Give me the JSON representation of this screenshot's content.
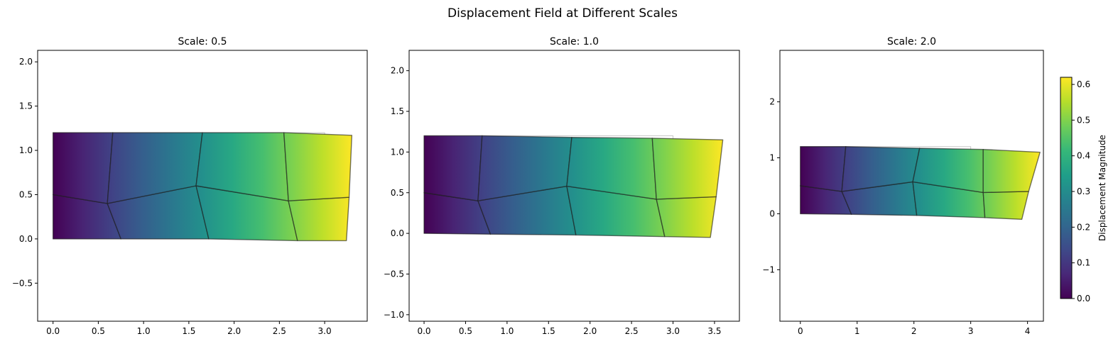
{
  "figure": {
    "title": "Displacement Field at Different Scales"
  },
  "chart_data": [
    {
      "type": "mesh",
      "title": "Scale: 0.5",
      "scale": 0.5,
      "xlim": [
        -0.17,
        3.47
      ],
      "ylim": [
        -0.93,
        2.13
      ],
      "xticks": [
        "0.0",
        "0.5",
        "1.0",
        "1.5",
        "2.0",
        "2.5",
        "3.0"
      ],
      "yticks": [
        "−0.5",
        "0.0",
        "0.5",
        "1.0",
        "1.5",
        "2.0"
      ],
      "xtick_values": [
        0,
        0.5,
        1,
        1.5,
        2,
        2.5,
        3
      ],
      "ytick_values": [
        -0.5,
        0,
        0.5,
        1,
        1.5,
        2
      ],
      "undeformed_outline": [
        [
          0,
          0
        ],
        [
          3,
          0
        ],
        [
          3,
          1.2
        ],
        [
          0,
          1.2
        ]
      ],
      "nodes": [
        [
          0,
          0
        ],
        [
          0.75,
          0
        ],
        [
          1.72,
          0
        ],
        [
          2.7,
          -0.02
        ],
        [
          3.24,
          -0.02
        ],
        [
          0,
          0.5
        ],
        [
          0.6,
          0.4
        ],
        [
          1.58,
          0.6
        ],
        [
          2.6,
          0.43
        ],
        [
          3.27,
          0.47
        ],
        [
          0,
          1.2
        ],
        [
          0.66,
          1.2
        ],
        [
          1.65,
          1.2
        ],
        [
          2.55,
          1.2
        ],
        [
          3.3,
          1.17
        ]
      ],
      "elements": [
        [
          0,
          1,
          6,
          5
        ],
        [
          1,
          2,
          7,
          6
        ],
        [
          2,
          3,
          8,
          7
        ],
        [
          3,
          4,
          9,
          8
        ],
        [
          5,
          6,
          11,
          10
        ],
        [
          6,
          7,
          12,
          11
        ],
        [
          7,
          8,
          13,
          12
        ],
        [
          8,
          9,
          14,
          13
        ]
      ],
      "max_displacement": 0.62
    },
    {
      "type": "mesh",
      "title": "Scale: 1.0",
      "scale": 1.0,
      "xlim": [
        -0.18,
        3.8
      ],
      "ylim": [
        -1.08,
        2.25
      ],
      "xticks": [
        "0.0",
        "0.5",
        "1.0",
        "1.5",
        "2.0",
        "2.5",
        "3.0",
        "3.5"
      ],
      "yticks": [
        "−1.0",
        "−0.5",
        "0.0",
        "0.5",
        "1.0",
        "1.5",
        "2.0"
      ],
      "xtick_values": [
        0,
        0.5,
        1,
        1.5,
        2,
        2.5,
        3,
        3.5
      ],
      "ytick_values": [
        -1,
        -0.5,
        0,
        0.5,
        1,
        1.5,
        2
      ],
      "undeformed_outline": [
        [
          0,
          0
        ],
        [
          3,
          0
        ],
        [
          3,
          1.2
        ],
        [
          0,
          1.2
        ]
      ],
      "nodes": [
        [
          0,
          0
        ],
        [
          0.8,
          -0.01
        ],
        [
          1.83,
          -0.02
        ],
        [
          2.9,
          -0.04
        ],
        [
          3.45,
          -0.05
        ],
        [
          0,
          0.5
        ],
        [
          0.65,
          0.4
        ],
        [
          1.72,
          0.58
        ],
        [
          2.8,
          0.42
        ],
        [
          3.52,
          0.45
        ],
        [
          0,
          1.2
        ],
        [
          0.7,
          1.2
        ],
        [
          1.78,
          1.18
        ],
        [
          2.75,
          1.17
        ],
        [
          3.6,
          1.15
        ]
      ],
      "elements": [
        [
          0,
          1,
          6,
          5
        ],
        [
          1,
          2,
          7,
          6
        ],
        [
          2,
          3,
          8,
          7
        ],
        [
          3,
          4,
          9,
          8
        ],
        [
          5,
          6,
          11,
          10
        ],
        [
          6,
          7,
          12,
          11
        ],
        [
          7,
          8,
          13,
          12
        ],
        [
          8,
          9,
          14,
          13
        ]
      ],
      "max_displacement": 0.62
    },
    {
      "type": "mesh",
      "title": "Scale: 2.0",
      "scale": 2.0,
      "xlim": [
        -0.36,
        4.28
      ],
      "ylim": [
        -1.92,
        2.92
      ],
      "xticks": [
        "0",
        "1",
        "2",
        "3",
        "4"
      ],
      "yticks": [
        "−1",
        "0",
        "1",
        "2"
      ],
      "xtick_values": [
        0,
        1,
        2,
        3,
        4
      ],
      "ytick_values": [
        -1,
        0,
        1,
        2
      ],
      "undeformed_outline": [
        [
          0,
          0
        ],
        [
          3,
          0
        ],
        [
          3,
          1.2
        ],
        [
          0,
          1.2
        ]
      ],
      "nodes": [
        [
          0,
          0
        ],
        [
          0.9,
          -0.01
        ],
        [
          2.05,
          -0.03
        ],
        [
          3.25,
          -0.07
        ],
        [
          3.9,
          -0.1
        ],
        [
          0,
          0.5
        ],
        [
          0.73,
          0.4
        ],
        [
          1.98,
          0.57
        ],
        [
          3.22,
          0.38
        ],
        [
          4.02,
          0.4
        ],
        [
          0,
          1.2
        ],
        [
          0.8,
          1.2
        ],
        [
          2.1,
          1.17
        ],
        [
          3.22,
          1.15
        ],
        [
          4.22,
          1.1
        ]
      ],
      "elements": [
        [
          0,
          1,
          6,
          5
        ],
        [
          1,
          2,
          7,
          6
        ],
        [
          2,
          3,
          8,
          7
        ],
        [
          3,
          4,
          9,
          8
        ],
        [
          5,
          6,
          11,
          10
        ],
        [
          6,
          7,
          12,
          11
        ],
        [
          7,
          8,
          13,
          12
        ],
        [
          8,
          9,
          14,
          13
        ]
      ],
      "max_displacement": 0.62
    }
  ],
  "colorbar": {
    "label": "Displacement Magnitude",
    "range": [
      0,
      0.62
    ],
    "ticks": [
      "0.0",
      "0.1",
      "0.2",
      "0.3",
      "0.4",
      "0.5",
      "0.6"
    ],
    "tick_values": [
      0,
      0.1,
      0.2,
      0.3,
      0.4,
      0.5,
      0.6
    ],
    "colormap": "viridis",
    "colors": [
      "#440154",
      "#482878",
      "#3e4a89",
      "#31688e",
      "#26828e",
      "#1f9e89",
      "#35b779",
      "#6ece58",
      "#b5de2b",
      "#fde725"
    ]
  }
}
